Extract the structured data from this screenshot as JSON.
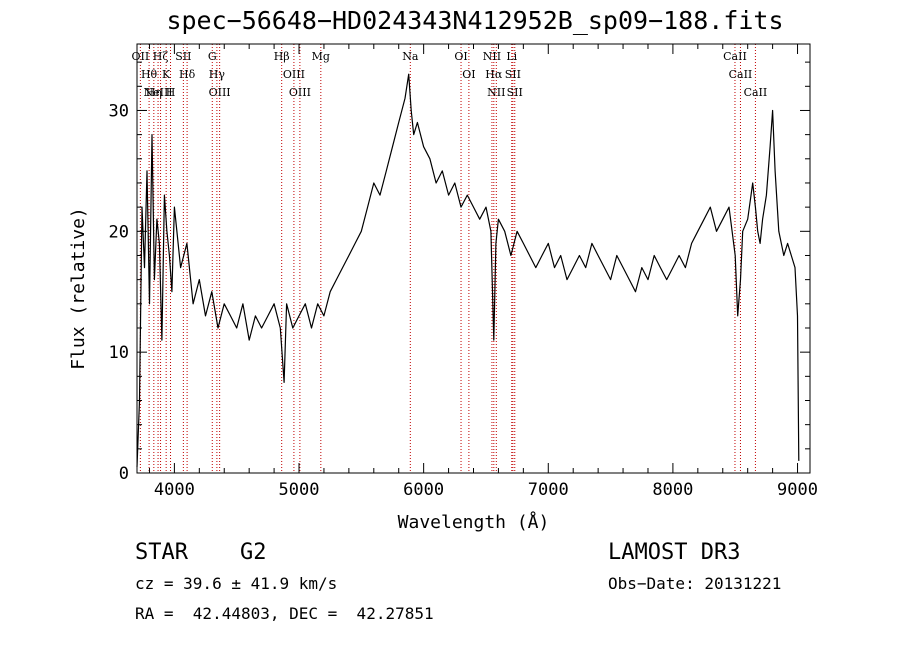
{
  "title": "spec−56648−HD024343N412952B_sp09−188.fits",
  "footer": {
    "class_label": "STAR",
    "subclass": "G2",
    "cz_line": "cz = 39.6 ± 41.9 km/s",
    "radec_line": "RA =  42.44803, DEC =  42.27851",
    "survey": "LAMOST DR3",
    "obs_date_line": "Obs−Date: 20131221"
  },
  "colors": {
    "spectrum": "#000000",
    "line_markers": "#c00000",
    "axes": "#000000"
  },
  "chart_data": {
    "type": "line",
    "xlabel": "Wavelength (Å)",
    "ylabel": "Flux (relative)",
    "xlim": [
      3700,
      9100
    ],
    "ylim": [
      0,
      35.5
    ],
    "xticks": [
      4000,
      5000,
      6000,
      7000,
      8000,
      9000
    ],
    "yticks": [
      0,
      10,
      20,
      30
    ],
    "series": [
      {
        "x": [
          3700,
          3720,
          3740,
          3760,
          3780,
          3800,
          3820,
          3840,
          3860,
          3880,
          3900,
          3920,
          3940,
          3960,
          3980,
          4000,
          4050,
          4100,
          4150,
          4200,
          4250,
          4300,
          4350,
          4400,
          4450,
          4500,
          4550,
          4600,
          4650,
          4700,
          4750,
          4800,
          4850,
          4880,
          4900,
          4950,
          5000,
          5050,
          5100,
          5150,
          5200,
          5250,
          5300,
          5350,
          5400,
          5450,
          5500,
          5550,
          5600,
          5650,
          5700,
          5750,
          5800,
          5850,
          5880,
          5900,
          5920,
          5950,
          6000,
          6050,
          6100,
          6150,
          6200,
          6250,
          6300,
          6350,
          6400,
          6450,
          6500,
          6540,
          6563,
          6580,
          6600,
          6650,
          6700,
          6750,
          6800,
          6850,
          6900,
          6950,
          7000,
          7050,
          7100,
          7150,
          7200,
          7250,
          7300,
          7350,
          7400,
          7450,
          7500,
          7550,
          7600,
          7650,
          7700,
          7750,
          7800,
          7850,
          7900,
          7950,
          8000,
          8050,
          8100,
          8150,
          8200,
          8250,
          8300,
          8350,
          8400,
          8450,
          8500,
          8520,
          8542,
          8560,
          8600,
          8640,
          8662,
          8680,
          8700,
          8720,
          8750,
          8780,
          8800,
          8820,
          8850,
          8870,
          8890,
          8920,
          8950,
          8980,
          9000,
          9010
        ],
        "y": [
          0.5,
          6,
          22,
          17,
          25,
          14,
          28,
          16,
          21,
          19,
          11,
          23,
          20,
          18,
          15,
          22,
          17,
          19,
          14,
          16,
          13,
          15,
          12,
          14,
          13,
          12,
          14,
          11,
          13,
          12,
          13,
          14,
          12,
          7.5,
          14,
          12,
          13,
          14,
          12,
          14,
          13,
          15,
          16,
          17,
          18,
          19,
          20,
          22,
          24,
          23,
          25,
          27,
          29,
          31,
          33,
          30,
          28,
          29,
          27,
          26,
          24,
          25,
          23,
          24,
          22,
          23,
          22,
          21,
          22,
          20,
          11,
          19,
          21,
          20,
          18,
          20,
          19,
          18,
          17,
          18,
          19,
          17,
          18,
          16,
          17,
          18,
          17,
          19,
          18,
          17,
          16,
          18,
          17,
          16,
          15,
          17,
          16,
          18,
          17,
          16,
          17,
          18,
          17,
          19,
          20,
          21,
          22,
          20,
          21,
          22,
          18,
          13,
          16,
          20,
          21,
          24,
          22,
          20,
          19,
          21,
          23,
          27,
          30,
          25,
          20,
          19,
          18,
          19,
          18,
          17,
          13,
          1
        ]
      }
    ],
    "line_marks": [
      {
        "wl": 3727,
        "label": "OII"
      },
      {
        "wl": 3797,
        "label": "Hθ"
      },
      {
        "wl": 3835,
        "label": "Hη"
      },
      {
        "wl": 3869,
        "label": "NeIII"
      },
      {
        "wl": 3889,
        "label": "Hζ"
      },
      {
        "wl": 3934,
        "label": "K"
      },
      {
        "wl": 3969,
        "label": "H"
      },
      {
        "wl": 4072,
        "label": "SII"
      },
      {
        "wl": 4102,
        "label": "Hδ"
      },
      {
        "wl": 4304,
        "label": "G"
      },
      {
        "wl": 4341,
        "label": "Hγ"
      },
      {
        "wl": 4363,
        "label": "OIII"
      },
      {
        "wl": 4861,
        "label": "Hβ"
      },
      {
        "wl": 4959,
        "label": "OIII"
      },
      {
        "wl": 5007,
        "label": "OIII"
      },
      {
        "wl": 5175,
        "label": "Mg"
      },
      {
        "wl": 5893,
        "label": "Na"
      },
      {
        "wl": 6300,
        "label": "OI"
      },
      {
        "wl": 6363,
        "label": "OI"
      },
      {
        "wl": 6548,
        "label": "NII"
      },
      {
        "wl": 6563,
        "label": "Hα"
      },
      {
        "wl": 6583,
        "label": "NII"
      },
      {
        "wl": 6707,
        "label": "Li"
      },
      {
        "wl": 6716,
        "label": "SII"
      },
      {
        "wl": 6731,
        "label": "SII"
      },
      {
        "wl": 8498,
        "label": "CaII"
      },
      {
        "wl": 8542,
        "label": "CaII"
      },
      {
        "wl": 8662,
        "label": "CaII"
      }
    ]
  }
}
